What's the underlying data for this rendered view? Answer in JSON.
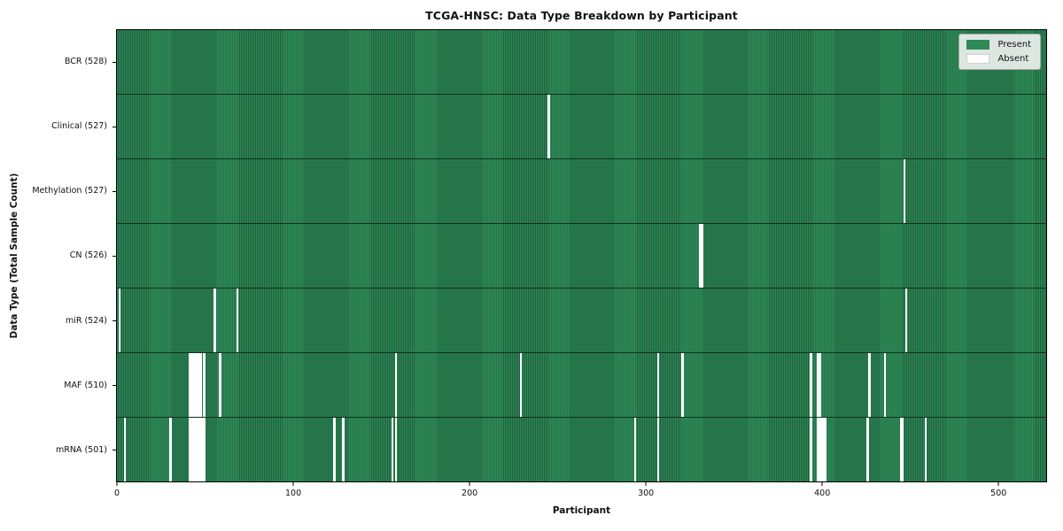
{
  "chart_data": {
    "type": "heatmap",
    "title": "TCGA-HNSC: Data Type Breakdown by Participant",
    "xlabel": "Participant",
    "ylabel": "Data Type (Total Sample Count)",
    "x_ticks": [
      0,
      100,
      200,
      300,
      400,
      500
    ],
    "n_participants": 528,
    "xlim": [
      -0.5,
      527.5
    ],
    "grid": false,
    "colors": {
      "present": "#2e8b57",
      "present_edge": "#1f5f3d",
      "absent": "#ffffff",
      "plot_border": "#000000",
      "row_separator": "rgba(0,0,0,0.6)"
    },
    "legend": {
      "position": "upper right",
      "entries": [
        {
          "label": "Present",
          "color": "#2e8b57"
        },
        {
          "label": "Absent",
          "color": "#ffffff"
        }
      ]
    },
    "rows": [
      {
        "data_type": "BCR",
        "label": "BCR (528)",
        "total": 528,
        "absent_participants": []
      },
      {
        "data_type": "Clinical",
        "label": "Clinical (527)",
        "total": 527,
        "absent_participants": [
          245
        ]
      },
      {
        "data_type": "Methylation",
        "label": "Methylation (527)",
        "total": 527,
        "absent_participants": [
          447
        ]
      },
      {
        "data_type": "CN",
        "label": "CN (526)",
        "total": 526,
        "absent_participants": [
          331,
          332
        ]
      },
      {
        "data_type": "miR",
        "label": "miR (524)",
        "total": 524,
        "absent_participants": [
          1,
          55,
          68,
          448
        ]
      },
      {
        "data_type": "MAF",
        "label": "MAF (510)",
        "total": 510,
        "absent_participants": [
          41,
          42,
          43,
          44,
          45,
          46,
          47,
          49,
          58,
          158,
          229,
          307,
          321,
          394,
          398,
          399,
          427,
          436
        ]
      },
      {
        "data_type": "mRNA",
        "label": "mRNA (501)",
        "total": 501,
        "absent_participants": [
          4,
          30,
          41,
          42,
          43,
          44,
          45,
          46,
          47,
          48,
          49,
          123,
          128,
          156,
          158,
          294,
          307,
          394,
          398,
          399,
          400,
          401,
          402,
          426,
          445,
          446,
          459
        ]
      }
    ]
  }
}
